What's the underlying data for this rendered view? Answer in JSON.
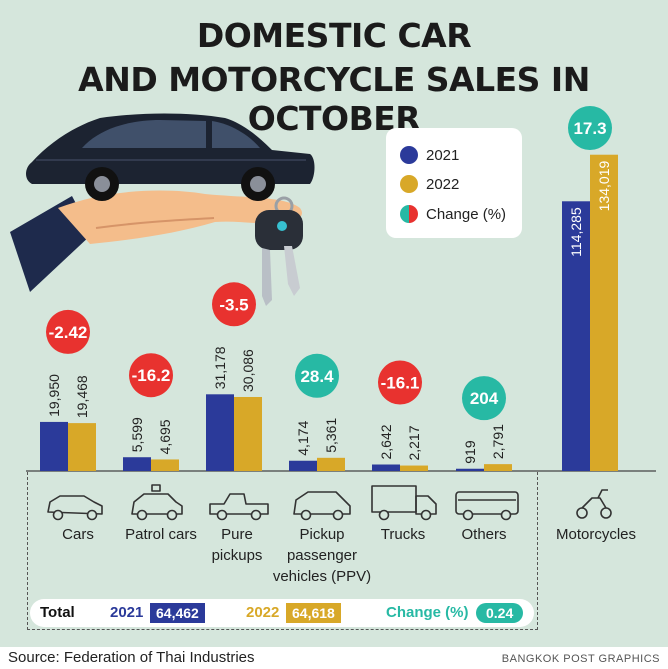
{
  "title_line1": "DOMESTIC CAR",
  "title_line2": "AND MOTORCYCLE SALES IN OCTOBER",
  "legend": {
    "y2021": "2021",
    "y2022": "2022",
    "change": "Change (%)"
  },
  "category_labels": {
    "cars": "Cars",
    "patrol": "Patrol cars",
    "pickups": "Pure pickups",
    "ppv": "Pickup passenger vehicles (PPV)",
    "trucks": "Trucks",
    "others": "Others",
    "motorcycles": "Motorcycles"
  },
  "totals": {
    "label": "Total",
    "y2021_label": "2021",
    "y2021_value": "64,462",
    "y2022_label": "2022",
    "y2022_value": "64,618",
    "change_label": "Change (%)",
    "change_value": "0.24"
  },
  "source": "Source: Federation of Thai Industries",
  "credit": "BANGKOK POST GRAPHICS",
  "colors": {
    "y2021": "#2b3a9a",
    "y2022": "#d8a828",
    "increase": "#27b9a4",
    "decrease": "#e8322f",
    "background": "#d5e6dc"
  },
  "chart_data": {
    "type": "bar",
    "title": "DOMESTIC CAR AND MOTORCYCLE SALES IN OCTOBER",
    "categories": [
      "Cars",
      "Patrol cars",
      "Pure pickups",
      "Pickup passenger vehicles (PPV)",
      "Trucks",
      "Others",
      "Motorcycles"
    ],
    "series": [
      {
        "name": "2021",
        "values": [
          19950,
          5599,
          31178,
          4174,
          2642,
          919,
          114285
        ],
        "labels": [
          "19,950",
          "5,599",
          "31,178",
          "4,174",
          "2,642",
          "919",
          "114,285"
        ]
      },
      {
        "name": "2022",
        "values": [
          19468,
          4695,
          30086,
          5361,
          2217,
          2791,
          134019
        ],
        "labels": [
          "19,468",
          "4,695",
          "30,086",
          "5,361",
          "2,217",
          "2,791",
          "134,019"
        ]
      }
    ],
    "change_percent": [
      -2.42,
      -16.2,
      -3.5,
      28.4,
      -16.1,
      204,
      17.3
    ],
    "change_labels": [
      "-2.42",
      "-16.2",
      "-3.5",
      "28.4",
      "-16.1",
      "204",
      "17.3"
    ],
    "change_label": "Change (%)",
    "xlabel": "",
    "ylabel": "",
    "legend": "top-right",
    "grid": false
  }
}
